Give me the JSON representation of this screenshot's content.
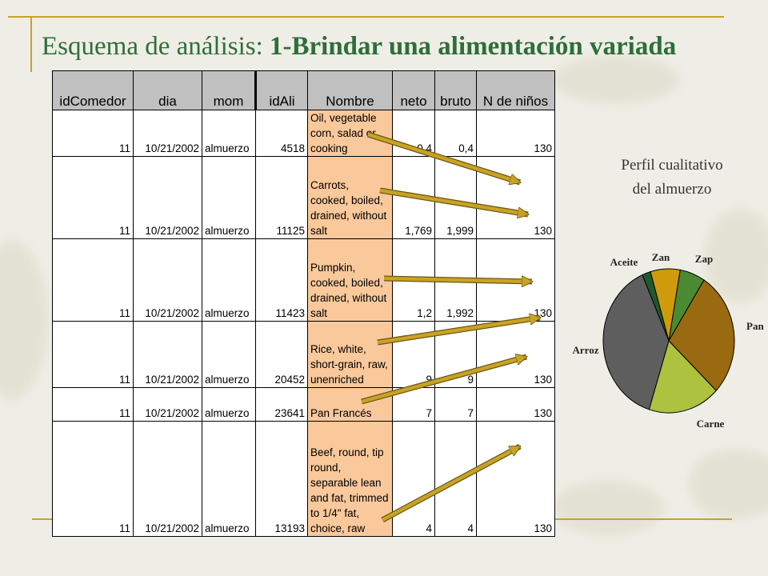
{
  "slide": {
    "title_regular": "Esquema de análisis: ",
    "title_bold": "1-Brindar una alimentación variada"
  },
  "table": {
    "headers": [
      "idComedor",
      "dia",
      "mom",
      "idAli",
      "Nombre",
      "neto",
      "bruto",
      "N de niños"
    ],
    "rows": [
      [
        "11",
        "10/21/2002",
        "almuerzo",
        "4518",
        "Oil, vegetable corn, salad or cooking",
        "0,4",
        "0,4",
        "130"
      ],
      [
        "11",
        "10/21/2002",
        "almuerzo",
        "11125",
        "Carrots, cooked, boiled, drained, without salt",
        "1,769",
        "1,999",
        "130"
      ],
      [
        "11",
        "10/21/2002",
        "almuerzo",
        "11423",
        "Pumpkin, cooked, boiled, drained, without salt",
        "1,2",
        "1,992",
        "130"
      ],
      [
        "11",
        "10/21/2002",
        "almuerzo",
        "20452",
        "Rice, white, short-grain, raw, unenriched",
        "9",
        "9",
        "130"
      ],
      [
        "11",
        "10/21/2002",
        "almuerzo",
        "23641",
        "Pan Francés",
        "7",
        "7",
        "130"
      ],
      [
        "11",
        "10/21/2002",
        "almuerzo",
        "13193",
        "Beef, round, tip round, separable lean and fat, trimmed to 1/4\" fat, choice, raw",
        "4",
        "4",
        "130"
      ]
    ]
  },
  "pie": {
    "title_line1": "Perfil cualitativo",
    "title_line2": "del almuerzo"
  },
  "chart_data": {
    "type": "pie",
    "categories": [
      "Zap",
      "Pan",
      "Carne",
      "Arroz",
      "Aceite",
      "Zan"
    ],
    "values": [
      6,
      27,
      17,
      37,
      2,
      7
    ],
    "colors": [
      "#4a8a32",
      "#9a6a10",
      "#adc23e",
      "#5e5e5e",
      "#1e5a2c",
      "#cf9b0c"
    ]
  }
}
